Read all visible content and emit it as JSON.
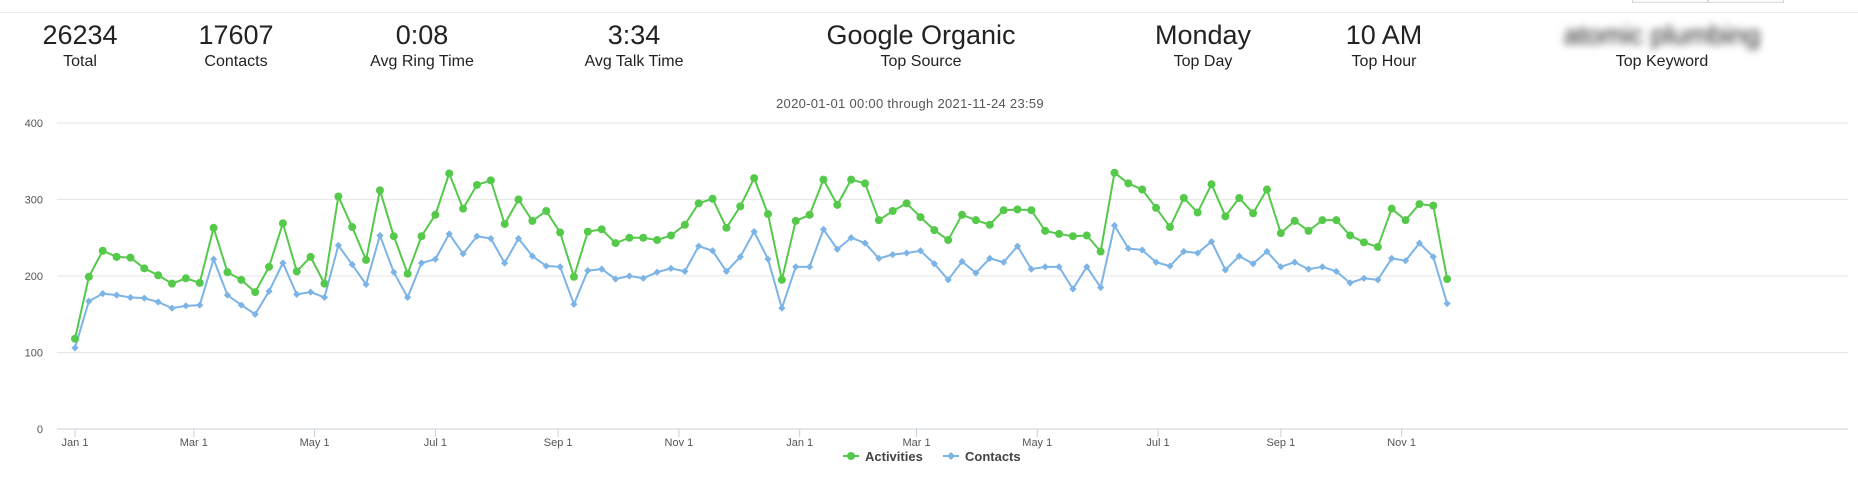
{
  "stats": [
    {
      "value": "26234",
      "label": "Total"
    },
    {
      "value": "17607",
      "label": "Contacts"
    },
    {
      "value": "0:08",
      "label": "Avg Ring Time"
    },
    {
      "value": "3:34",
      "label": "Avg Talk Time"
    },
    {
      "value": "Google Organic",
      "label": "Top Source"
    },
    {
      "value": "Monday",
      "label": "Top Day"
    },
    {
      "value": "10 AM",
      "label": "Top Hour"
    },
    {
      "value": "atomic plumbing",
      "label": "Top Keyword"
    }
  ],
  "colors": {
    "activities": "#55c94a",
    "contacts": "#7cb4e6"
  },
  "chart_data": {
    "type": "line",
    "subtitle": "2020-01-01 00:00 through 2021-11-24 23:59",
    "ylim": [
      0,
      400
    ],
    "yticks": [
      0,
      100,
      200,
      300,
      400
    ],
    "grid": true,
    "legend_position": "bottom-center",
    "x_tick_labels": [
      "Jan 1",
      "Mar 1",
      "May 1",
      "Jul 1",
      "Sep 1",
      "Nov 1",
      "Jan 1",
      "Mar 1",
      "May 1",
      "Jul 1",
      "Sep 1",
      "Nov 1"
    ],
    "x_start": "2020-01-01",
    "x_interval_days": 7,
    "series": [
      {
        "name": "Activities",
        "values": [
          118,
          199,
          233,
          225,
          224,
          210,
          201,
          190,
          197,
          191,
          263,
          205,
          195,
          179,
          212,
          269,
          206,
          225,
          190,
          304,
          264,
          221,
          312,
          252,
          203,
          252,
          280,
          334,
          288,
          319,
          325,
          268,
          300,
          272,
          285,
          257,
          199,
          258,
          261,
          243,
          250,
          250,
          247,
          253,
          267,
          295,
          301,
          263,
          291,
          328,
          281,
          195,
          272,
          280,
          326,
          293,
          326,
          321,
          273,
          285,
          295,
          277,
          260,
          247,
          280,
          273,
          267,
          286,
          287,
          286,
          259,
          255,
          252,
          253,
          232,
          335,
          321,
          313,
          289,
          264,
          302,
          283,
          320,
          278,
          302,
          282,
          313,
          256,
          272,
          259,
          273,
          273,
          253,
          244,
          238,
          288,
          273,
          294,
          292,
          196
        ]
      },
      {
        "name": "Contacts",
        "values": [
          106,
          167,
          177,
          175,
          172,
          171,
          166,
          158,
          161,
          162,
          222,
          175,
          162,
          150,
          180,
          217,
          176,
          179,
          172,
          240,
          215,
          189,
          253,
          205,
          172,
          217,
          222,
          255,
          229,
          252,
          249,
          217,
          249,
          226,
          213,
          212,
          163,
          207,
          209,
          196,
          200,
          197,
          205,
          210,
          206,
          239,
          233,
          206,
          225,
          258,
          222,
          158,
          212,
          212,
          261,
          235,
          250,
          243,
          223,
          228,
          230,
          233,
          216,
          195,
          219,
          204,
          223,
          218,
          239,
          209,
          212,
          212,
          183,
          212,
          185,
          266,
          236,
          234,
          218,
          213,
          232,
          230,
          245,
          208,
          226,
          216,
          232,
          212,
          218,
          209,
          212,
          206,
          191,
          197,
          195,
          223,
          220,
          243,
          225,
          164
        ]
      }
    ]
  }
}
